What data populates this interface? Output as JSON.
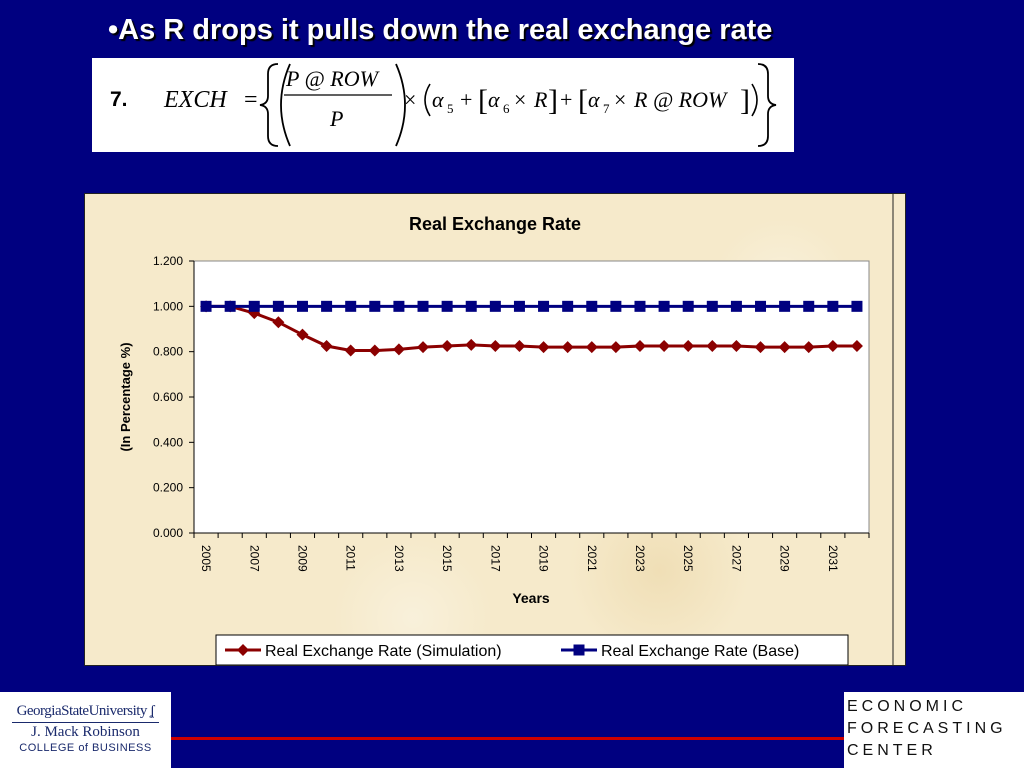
{
  "slide": {
    "title": "•As R drops it pulls down the real exchange rate"
  },
  "equation": {
    "number": "7.",
    "lhs": "EXCH",
    "numerator": "P @ ROW",
    "denominator": "P",
    "times1": "×",
    "alpha5_sym": "α",
    "alpha5_sub": "5",
    "plus1": "+",
    "alpha6_sym": "α",
    "alpha6_sub": "6",
    "times2": "×",
    "r1": "R",
    "plus2": "+",
    "alpha7_sym": "α",
    "alpha7_sub": "7",
    "times3": "×",
    "r_at_row": "R @ ROW"
  },
  "chart_data": {
    "type": "line",
    "title": "Real Exchange Rate",
    "xlabel": "Years",
    "ylabel": "(In Percentage %)",
    "ylim": [
      0,
      1.2
    ],
    "yticks": [
      "0.000",
      "0.200",
      "0.400",
      "0.600",
      "0.800",
      "1.000",
      "1.200"
    ],
    "x": [
      2005,
      2006,
      2007,
      2008,
      2009,
      2010,
      2011,
      2012,
      2013,
      2014,
      2015,
      2016,
      2017,
      2018,
      2019,
      2020,
      2021,
      2022,
      2023,
      2024,
      2025,
      2026,
      2027,
      2028,
      2029,
      2030,
      2031,
      2032
    ],
    "xtick_labels": [
      "2005",
      "2007",
      "2009",
      "2011",
      "2013",
      "2015",
      "2017",
      "2019",
      "2021",
      "2023",
      "2025",
      "2027",
      "2029",
      "2031"
    ],
    "grid": false,
    "legend_position": "bottom",
    "series": [
      {
        "name": "Real Exchange Rate (Simulation)",
        "color": "#8b0000",
        "marker": "diamond",
        "values": [
          1.0,
          1.0,
          0.97,
          0.93,
          0.875,
          0.825,
          0.805,
          0.805,
          0.81,
          0.82,
          0.825,
          0.83,
          0.825,
          0.825,
          0.82,
          0.82,
          0.82,
          0.82,
          0.825,
          0.825,
          0.825,
          0.825,
          0.825,
          0.82,
          0.82,
          0.82,
          0.825,
          0.825
        ]
      },
      {
        "name": "Real Exchange Rate (Base)",
        "color": "#000080",
        "marker": "square",
        "values": [
          1.0,
          1.0,
          1.0,
          1.0,
          1.0,
          1.0,
          1.0,
          1.0,
          1.0,
          1.0,
          1.0,
          1.0,
          1.0,
          1.0,
          1.0,
          1.0,
          1.0,
          1.0,
          1.0,
          1.0,
          1.0,
          1.0,
          1.0,
          1.0,
          1.0,
          1.0,
          1.0,
          1.0
        ]
      }
    ]
  },
  "footer": {
    "gsu_name": "GeorgiaStateUniversity",
    "gsu_flame_icon": "flame-icon",
    "gsu_school": "J. Mack Robinson",
    "gsu_college": "COLLEGE of BUSINESS",
    "efc_line1": "ECONOMIC",
    "efc_line2": "FORECASTING",
    "efc_line3": "CENTER",
    "rule_color": "#cc0000"
  }
}
